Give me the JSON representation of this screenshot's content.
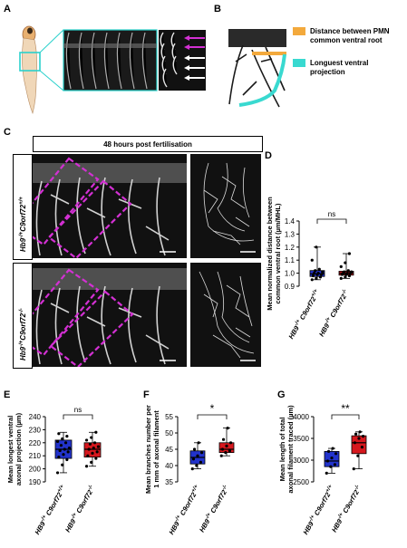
{
  "panel_letters": {
    "a": "A",
    "b": "B",
    "c": "C",
    "d": "D",
    "e": "E",
    "f": "F",
    "g": "G"
  },
  "panel_b": {
    "legend": [
      {
        "label": "Distance between PMN common ventral root",
        "color": "#f3a93c"
      },
      {
        "label": "Longuest ventral projection",
        "color": "#39d9d0"
      }
    ]
  },
  "panel_c": {
    "header": "48 hours post fertilisation",
    "row_labels": [
      "Hb9^{-/+}C9orf72^{+/+}",
      "Hb9^{-/+}C9orf72^{-/-}"
    ],
    "box_color": "#d330d3"
  },
  "groups": [
    "HB9-/+ C9orf72+/+",
    "HB9-/+ C9orf72-/-"
  ],
  "chart_data": [
    {
      "panel": "D",
      "type": "box",
      "ylabel": "Mean normalized distance between common ventral root (µm/MHL)",
      "ylim": [
        0.9,
        1.4
      ],
      "yticks": [
        0.9,
        1.0,
        1.1,
        1.2,
        1.3,
        1.4
      ],
      "significance": "ns",
      "series": [
        {
          "name": "HB9-/+ C9orf72+/+",
          "color": "#2233cc",
          "whisker_low": 0.95,
          "q1": 0.975,
          "median": 0.995,
          "q3": 1.02,
          "whisker_high": 1.2,
          "points": [
            0.95,
            0.96,
            0.97,
            0.98,
            0.99,
            0.99,
            1.0,
            1.0,
            1.01,
            1.02,
            1.03,
            1.1,
            1.2
          ]
        },
        {
          "name": "HB9-/+ C9orf72-/-",
          "color": "#d6181e",
          "whisker_low": 0.96,
          "q1": 0.985,
          "median": 1.0,
          "q3": 1.015,
          "whisker_high": 1.15,
          "points": [
            0.96,
            0.97,
            0.98,
            0.99,
            0.99,
            1.0,
            1.0,
            1.0,
            1.01,
            1.01,
            1.02,
            1.05,
            1.08,
            1.15
          ]
        }
      ]
    },
    {
      "panel": "E",
      "type": "box",
      "ylabel": "Mean longest ventral axonal projection (µm)",
      "ylim": [
        190,
        240
      ],
      "yticks": [
        190,
        200,
        210,
        220,
        230,
        240
      ],
      "significance": "ns",
      "series": [
        {
          "name": "HB9-/+ C9orf72+/+",
          "color": "#2233cc",
          "whisker_low": 197,
          "q1": 208,
          "median": 215,
          "q3": 222,
          "whisker_high": 228,
          "points": [
            197,
            203,
            207,
            209,
            211,
            213,
            214,
            215,
            216,
            218,
            220,
            221,
            223,
            225,
            227
          ]
        },
        {
          "name": "HB9-/+ C9orf72-/-",
          "color": "#d6181e",
          "whisker_low": 202,
          "q1": 209,
          "median": 215,
          "q3": 220,
          "whisker_high": 228,
          "points": [
            202,
            205,
            208,
            210,
            212,
            213,
            215,
            216,
            217,
            219,
            220,
            222,
            224,
            228
          ]
        }
      ]
    },
    {
      "panel": "F",
      "type": "box",
      "ylabel": "Mean branches number per 1 mm of axonal filament",
      "ylim": [
        35,
        55
      ],
      "yticks": [
        35,
        40,
        45,
        50,
        55
      ],
      "significance": "*",
      "series": [
        {
          "name": "HB9-/+ C9orf72+/+",
          "color": "#2233cc",
          "whisker_low": 39,
          "q1": 40.5,
          "median": 42.5,
          "q3": 44.5,
          "whisker_high": 47,
          "points": [
            39,
            40,
            41,
            42,
            43,
            44,
            45,
            47
          ]
        },
        {
          "name": "HB9-/+ C9orf72-/-",
          "color": "#d6181e",
          "whisker_low": 43,
          "q1": 44,
          "median": 45,
          "q3": 47,
          "whisker_high": 51.5,
          "points": [
            43,
            44,
            44.5,
            45,
            46,
            47,
            48,
            51.5
          ]
        }
      ]
    },
    {
      "panel": "G",
      "type": "box",
      "ylabel": "Mean length of total axonal filament traced (µm)",
      "ylim": [
        2500,
        4000
      ],
      "yticks": [
        2500,
        3000,
        3500,
        4000
      ],
      "significance": "**",
      "series": [
        {
          "name": "HB9-/+ C9orf72+/+",
          "color": "#2233cc",
          "whisker_low": 2700,
          "q1": 2850,
          "median": 2980,
          "q3": 3200,
          "whisker_high": 3270,
          "points": [
            2700,
            2850,
            2900,
            2980,
            3050,
            3150,
            3200,
            3270
          ]
        },
        {
          "name": "HB9-/+ C9orf72-/-",
          "color": "#d6181e",
          "whisker_low": 2800,
          "q1": 3150,
          "median": 3400,
          "q3": 3560,
          "whisker_high": 3650,
          "points": [
            2800,
            3100,
            3300,
            3400,
            3500,
            3550,
            3600,
            3650
          ]
        }
      ]
    }
  ]
}
